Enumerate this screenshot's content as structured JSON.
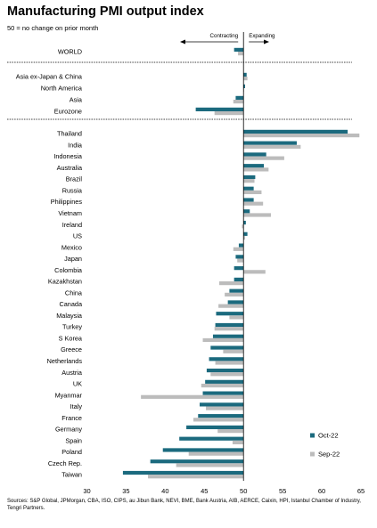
{
  "title": "Manufacturing PMI output index",
  "subtitle": "50 = no change on prior month",
  "sources": "Sources: S&P Global, JPMorgan, CBA, ISO, CIPS, au Jibun Bank, NEVI, BME, Bank Austria, AIB, AERCE, Caixin, HPI, Istanbul Chamber of Industry, Tengri Partners.",
  "annotations": {
    "contracting": "Contracting",
    "expanding": "Expanding"
  },
  "colors": {
    "oct": "#1b6a7e",
    "sep": "#bcbcbc",
    "axis": "#000000",
    "separator": "#000000"
  },
  "chart_data": {
    "type": "bar",
    "orientation": "horizontal",
    "baseline": 50,
    "xlim": [
      30,
      65
    ],
    "xticks": [
      "30",
      "35",
      "40",
      "45",
      "50",
      "55",
      "60",
      "65"
    ],
    "legend_position": "bottom-right",
    "categories": [
      "WORLD",
      "Asia ex-Japan & China",
      "North America",
      "Asia",
      "Eurozone",
      "Thailand",
      "India",
      "Indonesia",
      "Australia",
      "Brazil",
      "Russia",
      "Philippines",
      "Vietnam",
      "Ireland",
      "US",
      "Mexico",
      "Japan",
      "Colombia",
      "Kazakhstan",
      "China",
      "Canada",
      "Malaysia",
      "Turkey",
      "S Korea",
      "Greece",
      "Netherlands",
      "Austria",
      "UK",
      "Myanmar",
      "Italy",
      "France",
      "Germany",
      "Spain",
      "Poland",
      "Czech Rep.",
      "Taiwan"
    ],
    "groups": [
      1,
      4,
      30
    ],
    "series": [
      {
        "name": "Oct-22",
        "values": [
          48.8,
          50.4,
          50.2,
          49.0,
          43.9,
          63.3,
          56.8,
          52.9,
          52.6,
          51.5,
          51.3,
          51.3,
          50.8,
          50.3,
          50.5,
          49.4,
          49.0,
          48.8,
          48.8,
          48.2,
          48.0,
          46.5,
          46.4,
          46.1,
          45.8,
          45.6,
          45.3,
          45.1,
          44.8,
          44.4,
          44.2,
          42.7,
          41.8,
          39.7,
          38.1,
          34.6
        ]
      },
      {
        "name": "Sep-22",
        "values": [
          49.3,
          50.5,
          50.0,
          48.7,
          46.3,
          64.8,
          57.3,
          55.2,
          53.2,
          51.4,
          52.3,
          52.5,
          53.5,
          49.8,
          50.2,
          48.7,
          49.2,
          52.8,
          46.9,
          47.6,
          46.8,
          48.2,
          46.3,
          44.8,
          47.4,
          46.4,
          45.8,
          44.6,
          36.9,
          45.2,
          43.6,
          46.7,
          48.6,
          43.0,
          41.4,
          37.8
        ]
      }
    ]
  }
}
